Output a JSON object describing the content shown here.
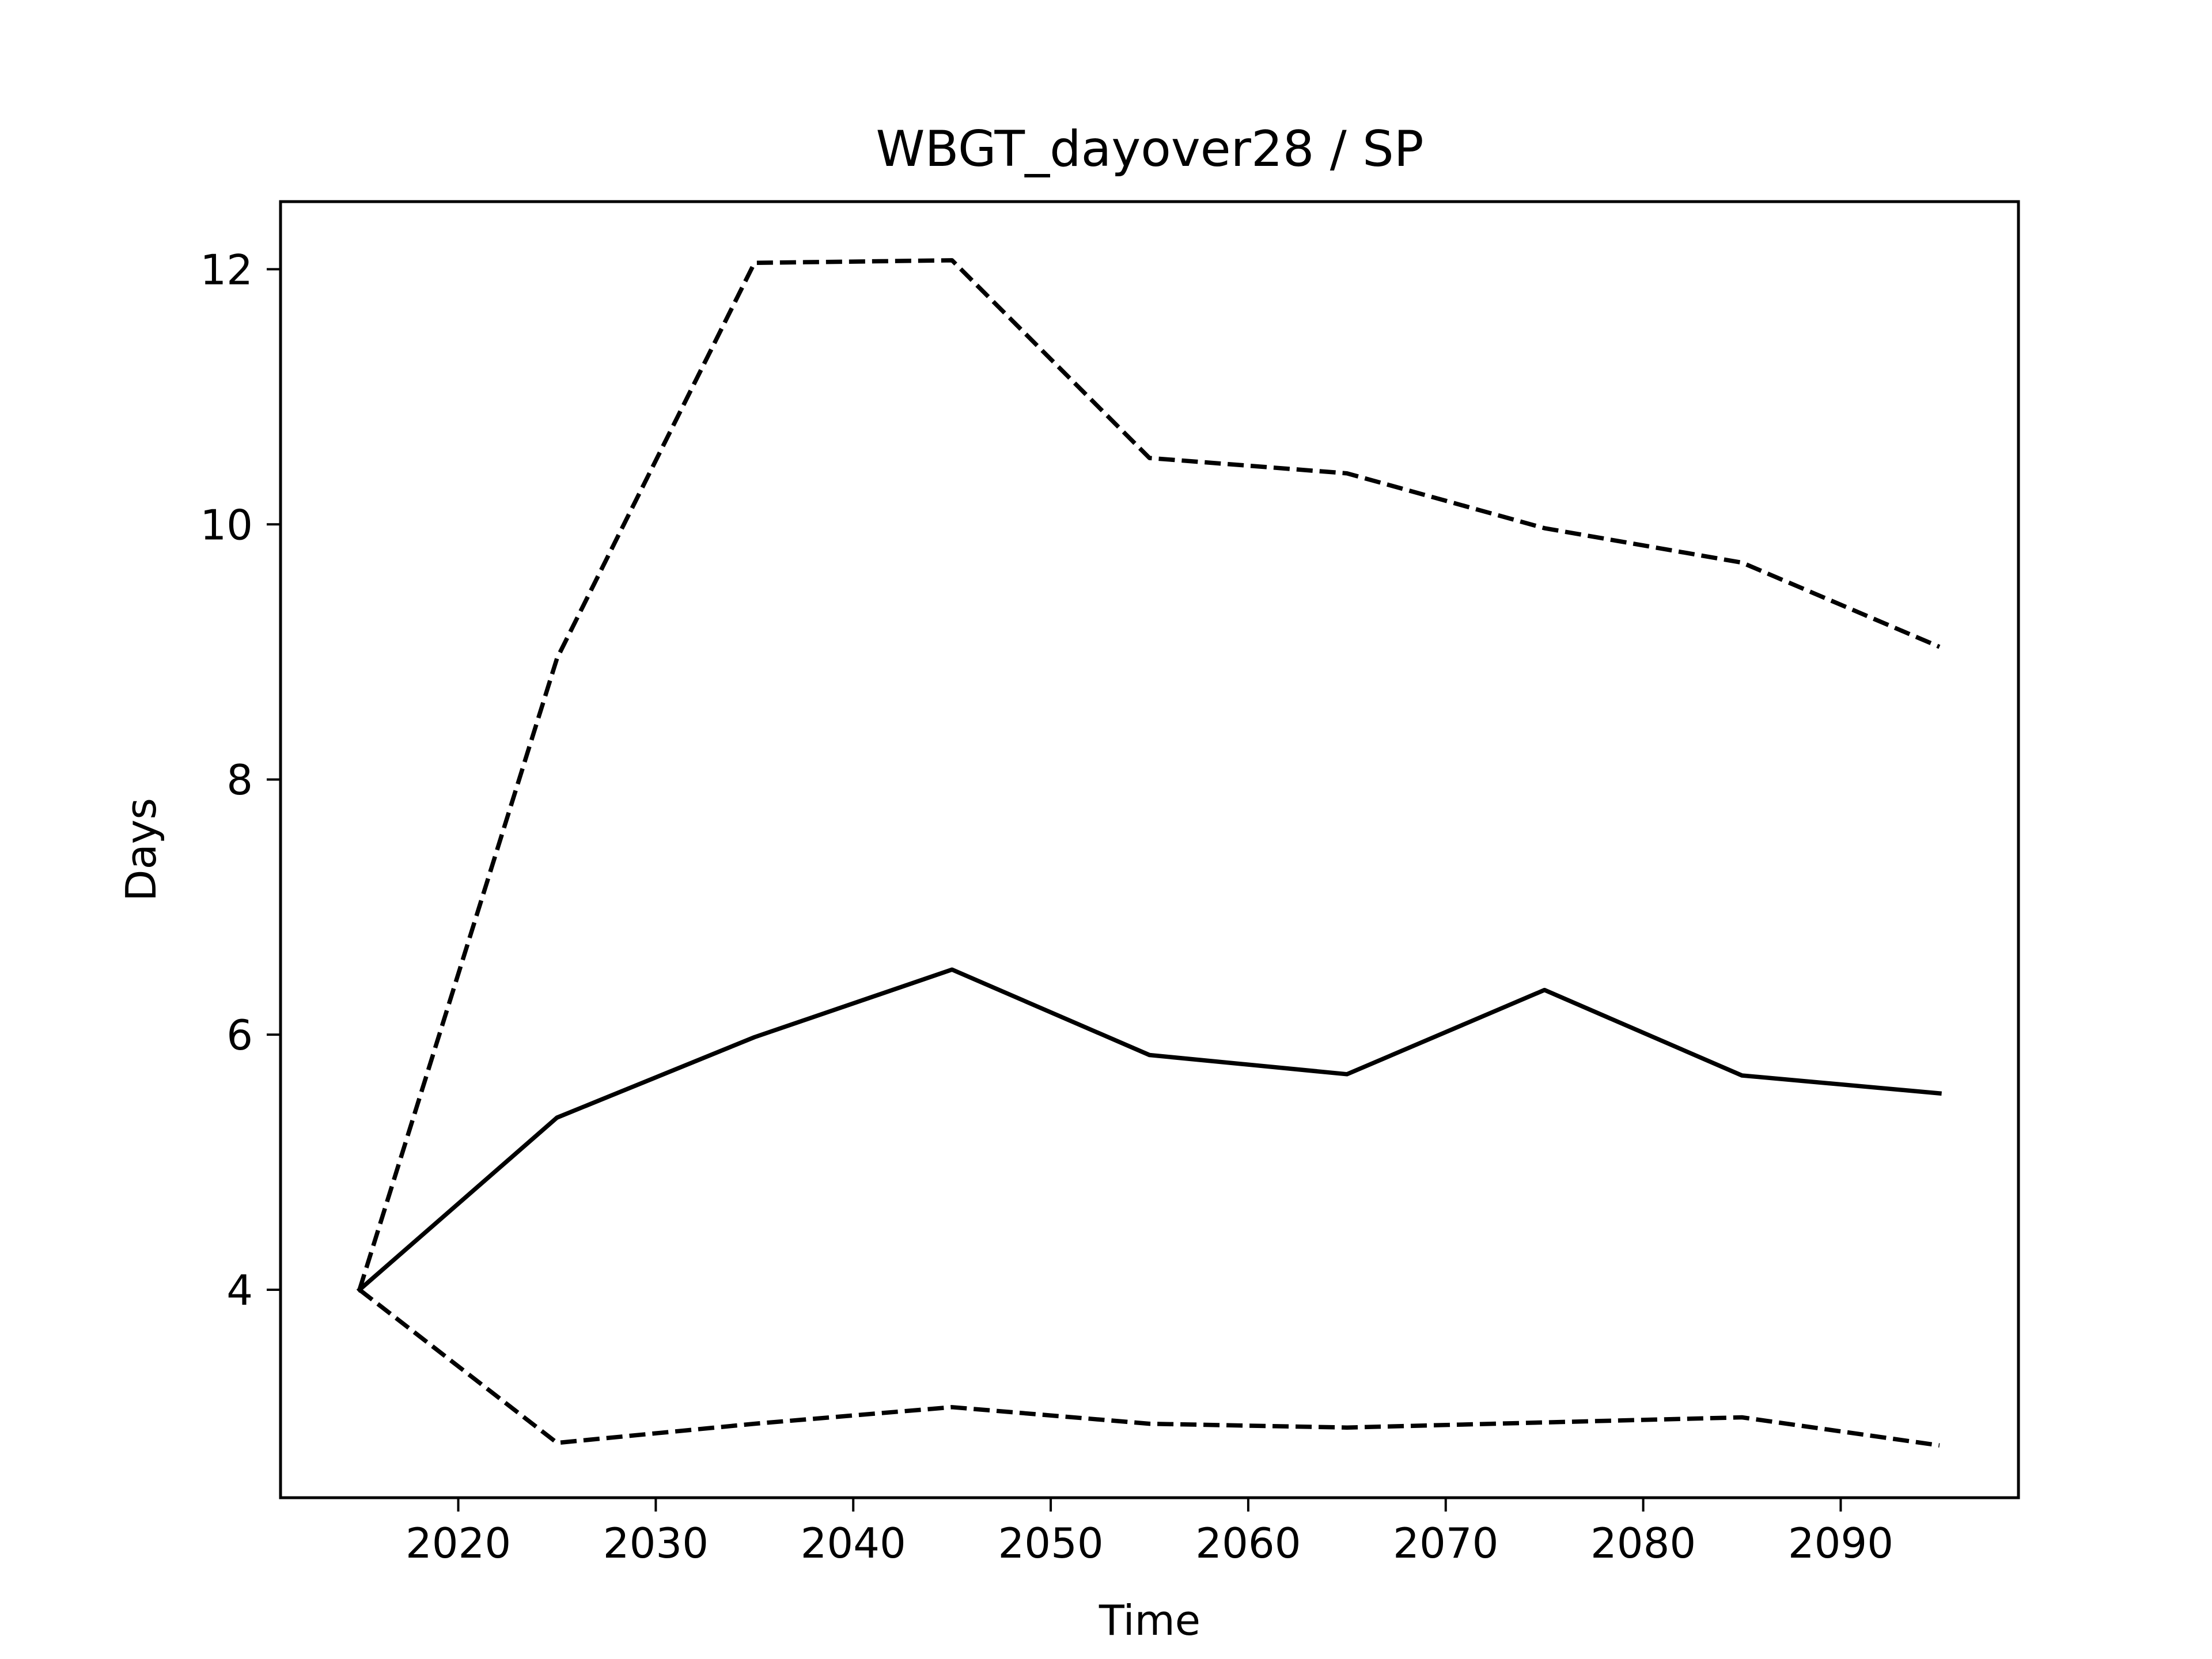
{
  "chart_data": {
    "type": "line",
    "title": "WBGT_dayover28 / SP",
    "xlabel": "Time",
    "ylabel": "Days",
    "xlim": [
      2011,
      2099
    ],
    "ylim": [
      2.37,
      12.53
    ],
    "xticks": [
      2020,
      2030,
      2040,
      2050,
      2060,
      2070,
      2080,
      2090
    ],
    "yticks": [
      4,
      6,
      8,
      10,
      12
    ],
    "grid": false,
    "legend": "none",
    "x": [
      2015,
      2025,
      2035,
      2045,
      2055,
      2065,
      2075,
      2085,
      2095
    ],
    "series": [
      {
        "style": "dashed",
        "color": "#000000",
        "values": [
          4.0,
          8.95,
          12.05,
          12.07,
          10.52,
          10.4,
          9.97,
          9.7,
          9.04
        ]
      },
      {
        "style": "solid",
        "color": "#000000",
        "values": [
          4.0,
          5.35,
          5.98,
          6.51,
          5.84,
          5.69,
          6.35,
          5.68,
          5.54
        ]
      },
      {
        "style": "dashed",
        "color": "#000000",
        "values": [
          4.0,
          2.8,
          2.95,
          3.08,
          2.95,
          2.92,
          2.96,
          3.0,
          2.78
        ]
      }
    ]
  }
}
